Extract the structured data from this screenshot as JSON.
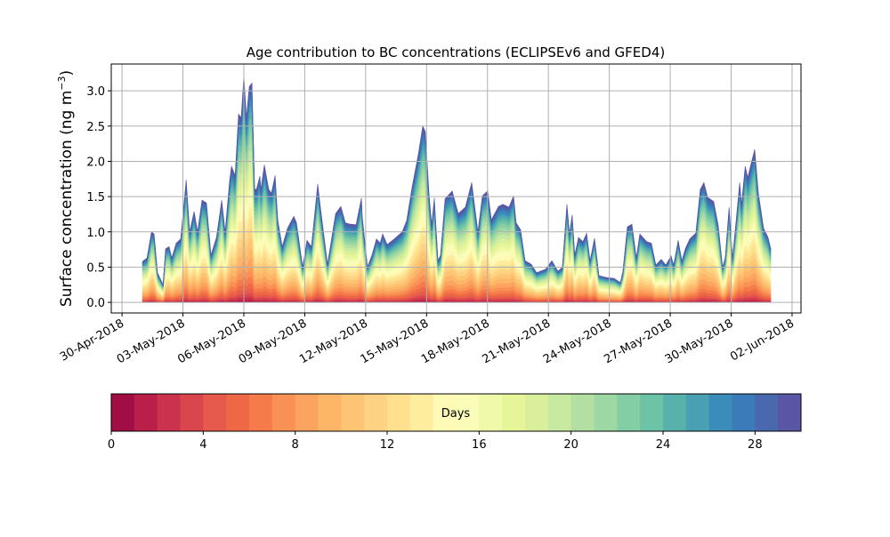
{
  "chart_data": {
    "type": "area",
    "stacked": true,
    "title": "Age contribution to BC concentrations (ECLIPSEv6 and GFED4)",
    "xlabel": "",
    "ylabel_main": "Surface concentration (ng m",
    "ylabel_sup": "−3",
    "ylabel_end": ")",
    "x_units": "days since 30-Apr-2018",
    "xlim": [
      -0.53,
      33.44
    ],
    "ylim": [
      -0.15,
      3.38
    ],
    "grid": true,
    "x_ticks": [
      0,
      3,
      6,
      9,
      12,
      15,
      18,
      21,
      24,
      27,
      30,
      33
    ],
    "x_tick_labels": [
      "30-Apr-2018",
      "03-May-2018",
      "06-May-2018",
      "09-May-2018",
      "12-May-2018",
      "15-May-2018",
      "18-May-2018",
      "21-May-2018",
      "24-May-2018",
      "27-May-2018",
      "30-May-2018",
      "02-Jun-2018"
    ],
    "y_ticks": [
      0,
      0.5,
      1.0,
      1.5,
      2.0,
      2.5,
      3.0
    ],
    "y_tick_labels": [
      "0.0",
      "0.5",
      "1.0",
      "1.5",
      "2.0",
      "2.5",
      "3.0"
    ],
    "x": [
      1.01,
      1.23,
      1.45,
      1.58,
      1.75,
      2.02,
      2.15,
      2.32,
      2.45,
      2.67,
      2.89,
      3.16,
      3.33,
      3.55,
      3.72,
      3.94,
      4.16,
      4.38,
      4.65,
      4.91,
      5.08,
      5.3,
      5.39,
      5.57,
      5.74,
      5.87,
      6.0,
      6.13,
      6.27,
      6.4,
      6.53,
      6.62,
      6.79,
      6.84,
      7.01,
      7.23,
      7.36,
      7.54,
      7.67,
      7.89,
      8.15,
      8.46,
      8.59,
      8.9,
      9.11,
      9.33,
      9.64,
      9.77,
      10.12,
      10.52,
      10.78,
      11.0,
      11.22,
      11.53,
      11.79,
      11.83,
      12.09,
      12.31,
      12.53,
      12.71,
      12.84,
      13.06,
      13.41,
      13.8,
      14.02,
      14.29,
      14.59,
      14.81,
      14.94,
      15.12,
      15.25,
      15.38,
      15.56,
      15.69,
      15.91,
      16.26,
      16.56,
      16.91,
      17.22,
      17.53,
      17.75,
      18.01,
      18.19,
      18.54,
      18.76,
      19.06,
      19.28,
      19.41,
      19.63,
      19.85,
      20.16,
      20.42,
      20.86,
      21.17,
      21.47,
      21.69,
      21.91,
      22.04,
      22.17,
      22.3,
      22.48,
      22.7,
      22.88,
      23.05,
      23.27,
      23.49,
      23.88,
      24.23,
      24.54,
      24.67,
      24.89,
      25.11,
      25.33,
      25.5,
      25.85,
      26.07,
      26.29,
      26.56,
      26.78,
      27.04,
      27.17,
      27.39,
      27.57,
      27.74,
      27.96,
      28.26,
      28.48,
      28.66,
      28.84,
      29.14,
      29.36,
      29.58,
      29.71,
      29.9,
      30.07,
      30.25,
      30.42,
      30.51,
      30.69,
      30.82,
      30.95,
      31.16,
      31.34,
      31.6,
      31.82,
      31.95
    ],
    "total": [
      0.58,
      0.63,
      1.0,
      0.97,
      0.42,
      0.25,
      0.76,
      0.79,
      0.63,
      0.84,
      0.9,
      1.74,
      1.0,
      1.29,
      1.0,
      1.45,
      1.41,
      0.67,
      0.92,
      1.45,
      1.0,
      1.73,
      1.93,
      1.8,
      2.67,
      2.62,
      3.22,
      2.62,
      3.06,
      3.11,
      1.61,
      1.6,
      1.79,
      1.6,
      1.95,
      1.6,
      1.55,
      1.8,
      1.17,
      0.79,
      1.05,
      1.22,
      1.13,
      0.5,
      0.88,
      0.79,
      1.68,
      1.35,
      0.54,
      1.26,
      1.36,
      1.13,
      1.11,
      1.1,
      1.48,
      1.22,
      0.5,
      0.67,
      0.9,
      0.84,
      0.97,
      0.82,
      0.9,
      1.0,
      1.16,
      1.64,
      2.1,
      2.5,
      2.42,
      1.55,
      1.1,
      1.48,
      0.59,
      0.67,
      1.47,
      1.58,
      1.26,
      1.35,
      1.7,
      1.0,
      1.51,
      1.58,
      1.17,
      1.36,
      1.39,
      1.35,
      1.51,
      1.13,
      1.03,
      0.59,
      0.54,
      0.42,
      0.47,
      0.59,
      0.44,
      0.5,
      1.39,
      0.97,
      1.24,
      0.67,
      0.92,
      0.86,
      0.98,
      0.59,
      0.91,
      0.38,
      0.35,
      0.34,
      0.28,
      0.44,
      1.07,
      1.11,
      0.63,
      0.97,
      0.86,
      0.84,
      0.53,
      0.61,
      0.53,
      0.66,
      0.53,
      0.88,
      0.59,
      0.76,
      0.9,
      0.98,
      1.6,
      1.7,
      1.49,
      1.43,
      1.1,
      0.5,
      0.63,
      1.35,
      0.63,
      1.17,
      1.7,
      1.39,
      1.93,
      1.77,
      1.93,
      2.17,
      1.55,
      1.05,
      0.92,
      0.76
    ],
    "age_bin_shares": [
      0.005,
      0.008,
      0.012,
      0.015,
      0.02,
      0.025,
      0.03,
      0.035,
      0.04,
      0.045,
      0.045,
      0.045,
      0.045,
      0.045,
      0.045,
      0.045,
      0.04,
      0.04,
      0.04,
      0.04,
      0.038,
      0.036,
      0.034,
      0.032,
      0.03,
      0.028,
      0.026,
      0.024,
      0.022,
      0.02
    ],
    "colorbar": {
      "label": "Days",
      "range": [
        0,
        30
      ],
      "ticks": [
        0,
        4,
        8,
        12,
        16,
        20,
        24,
        28
      ],
      "tick_labels": [
        "0",
        "4",
        "8",
        "12",
        "16",
        "20",
        "24",
        "28"
      ],
      "colors": [
        "#a30d45",
        "#b91f48",
        "#cb334c",
        "#da464d",
        "#e55a4a",
        "#ef6846",
        "#f67b4a",
        "#f99155",
        "#fba45f",
        "#fdb668",
        "#fdc474",
        "#fed283",
        "#fee08e",
        "#feed9f",
        "#fffab6",
        "#fafdb8",
        "#f0f9a8",
        "#e6f598",
        "#d9ef9b",
        "#c8e9a0",
        "#b3e0a2",
        "#9dd7a4",
        "#84cda5",
        "#6cc3a5",
        "#58b2ab",
        "#48a0b2",
        "#3a8dba",
        "#3a7bb8",
        "#4a68ae",
        "#5956a5"
      ]
    }
  }
}
